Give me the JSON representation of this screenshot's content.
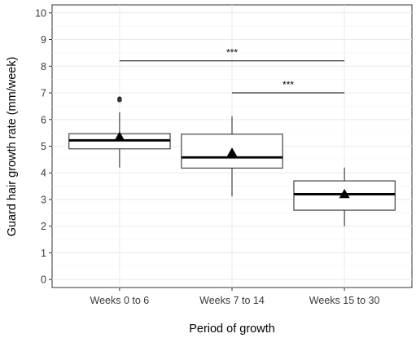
{
  "chart_data": {
    "type": "box",
    "xlabel": "Period of growth",
    "ylabel": "Guard hair growth rate (mm/week)",
    "categories": [
      "Weeks 0 to 6",
      "Weeks 7 to 14",
      "Weeks 15 to 30"
    ],
    "ylim": [
      -0.3,
      10.3
    ],
    "yticks": [
      0,
      1,
      2,
      3,
      4,
      5,
      6,
      7,
      8,
      9,
      10
    ],
    "grid": true,
    "boxes": [
      {
        "category": "Weeks 0 to 6",
        "whisker_low": 4.2,
        "q1": 4.9,
        "median": 5.22,
        "q3": 5.47,
        "whisker_high": 6.27,
        "mean": 5.35,
        "outliers": [
          6.73,
          6.78
        ]
      },
      {
        "category": "Weeks 7 to 14",
        "whisker_low": 3.12,
        "q1": 4.18,
        "median": 4.58,
        "q3": 5.45,
        "whisker_high": 6.12,
        "mean": 4.75,
        "outliers": []
      },
      {
        "category": "Weeks 15 to 30",
        "whisker_low": 2.0,
        "q1": 2.6,
        "median": 3.2,
        "q3": 3.7,
        "whisker_high": 4.2,
        "mean": 3.2,
        "outliers": []
      }
    ],
    "significance": [
      {
        "from": "Weeks 0 to 6",
        "to": "Weeks 15 to 30",
        "y": 8.2,
        "label": "***"
      },
      {
        "from": "Weeks 7 to 14",
        "to": "Weeks 15 to 30",
        "y": 7.0,
        "label": "***"
      }
    ]
  }
}
